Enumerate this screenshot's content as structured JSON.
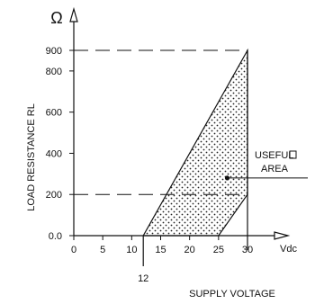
{
  "chart_data": {
    "type": "area",
    "ylabel": "LOAD RESISTANCE RL",
    "xlabel": "SUPPLY VOLTAGE",
    "x_unit": "Vdc",
    "y_unit": "Ω",
    "xlim": [
      0,
      30
    ],
    "ylim": [
      0,
      900
    ],
    "x_ticks": [
      0,
      5,
      10,
      15,
      20,
      25,
      30
    ],
    "y_ticks": [
      0,
      200,
      400,
      600,
      800,
      900
    ],
    "y_tick_labels": [
      "0.0",
      "200",
      "400",
      "600",
      "800",
      "900"
    ],
    "x_marker": {
      "value": 12,
      "label": "12"
    },
    "useful_area": {
      "label_line1": "USEFUL",
      "label_line2": "AREA",
      "vertices": [
        [
          12,
          0
        ],
        [
          30,
          900
        ],
        [
          30,
          200
        ],
        [
          25,
          0
        ]
      ]
    },
    "reference_lines": {
      "dashed_y": [
        200,
        900
      ],
      "dashed_x": [
        30
      ]
    },
    "grid": false
  }
}
